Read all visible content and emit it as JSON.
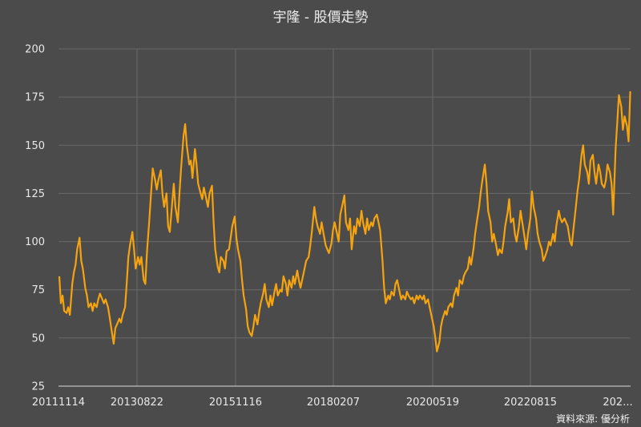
{
  "chart_data": {
    "type": "line",
    "title": "宇隆 - 股價走勢",
    "source": "資料來源: 優分析",
    "y_ticks": [
      25,
      50,
      75,
      100,
      125,
      150,
      175,
      200
    ],
    "ylim": [
      25,
      200
    ],
    "x_ticks": [
      "20111114",
      "20130822",
      "20151116",
      "20180207",
      "20200519",
      "20220815",
      "202..."
    ],
    "grid": "vertical-and-horizontal",
    "line_color": "#f5a30f",
    "series": [
      {
        "x_index_range": [
          0,
          100
        ],
        "values": [
          [
            0.0,
            82
          ],
          [
            0.2,
            68
          ],
          [
            0.4,
            72
          ],
          [
            0.6,
            64
          ],
          [
            0.9,
            63
          ],
          [
            1.1,
            66
          ],
          [
            1.3,
            62
          ],
          [
            1.6,
            78
          ],
          [
            1.8,
            84
          ],
          [
            2.0,
            88
          ],
          [
            2.2,
            96
          ],
          [
            2.5,
            102
          ],
          [
            2.7,
            90
          ],
          [
            2.9,
            86
          ],
          [
            3.2,
            76
          ],
          [
            3.4,
            72
          ],
          [
            3.6,
            66
          ],
          [
            3.9,
            68
          ],
          [
            4.1,
            64
          ],
          [
            4.3,
            68
          ],
          [
            4.6,
            66
          ],
          [
            4.8,
            70
          ],
          [
            5.0,
            73
          ],
          [
            5.3,
            70
          ],
          [
            5.5,
            68
          ],
          [
            5.7,
            70
          ],
          [
            6.0,
            66
          ],
          [
            6.2,
            61
          ],
          [
            6.4,
            55
          ],
          [
            6.7,
            47
          ],
          [
            6.9,
            55
          ],
          [
            7.1,
            57
          ],
          [
            7.4,
            60
          ],
          [
            7.6,
            58
          ],
          [
            7.8,
            62
          ],
          [
            8.1,
            66
          ],
          [
            8.3,
            78
          ],
          [
            8.5,
            92
          ],
          [
            8.7,
            98
          ],
          [
            9.0,
            105
          ],
          [
            9.2,
            96
          ],
          [
            9.4,
            86
          ],
          [
            9.7,
            92
          ],
          [
            9.9,
            88
          ],
          [
            10.1,
            92
          ],
          [
            10.4,
            80
          ],
          [
            10.6,
            78
          ],
          [
            10.8,
            95
          ],
          [
            11.1,
            112
          ],
          [
            11.3,
            125
          ],
          [
            11.5,
            138
          ],
          [
            11.8,
            132
          ],
          [
            12.0,
            127
          ],
          [
            12.2,
            132
          ],
          [
            12.5,
            137
          ],
          [
            12.7,
            125
          ],
          [
            12.9,
            118
          ],
          [
            13.2,
            125
          ],
          [
            13.4,
            108
          ],
          [
            13.6,
            105
          ],
          [
            13.9,
            120
          ],
          [
            14.1,
            130
          ],
          [
            14.3,
            118
          ],
          [
            14.6,
            110
          ],
          [
            14.8,
            125
          ],
          [
            15.0,
            138
          ],
          [
            15.3,
            155
          ],
          [
            15.5,
            161
          ],
          [
            15.7,
            150
          ],
          [
            16.0,
            140
          ],
          [
            16.2,
            142
          ],
          [
            16.4,
            133
          ],
          [
            16.7,
            148
          ],
          [
            16.9,
            140
          ],
          [
            17.1,
            130
          ],
          [
            17.4,
            125
          ],
          [
            17.6,
            122
          ],
          [
            17.8,
            128
          ],
          [
            18.1,
            122
          ],
          [
            18.3,
            118
          ],
          [
            18.5,
            125
          ],
          [
            18.8,
            129
          ],
          [
            19.0,
            110
          ],
          [
            19.2,
            96
          ],
          [
            19.5,
            87
          ],
          [
            19.7,
            84
          ],
          [
            19.9,
            92
          ],
          [
            20.2,
            90
          ],
          [
            20.4,
            86
          ],
          [
            20.6,
            95
          ],
          [
            20.9,
            96
          ],
          [
            21.1,
            102
          ],
          [
            21.3,
            108
          ],
          [
            21.6,
            113
          ],
          [
            21.8,
            102
          ],
          [
            22.0,
            96
          ],
          [
            22.3,
            90
          ],
          [
            22.5,
            80
          ],
          [
            22.7,
            72
          ],
          [
            23.0,
            65
          ],
          [
            23.2,
            56
          ],
          [
            23.4,
            53
          ],
          [
            23.7,
            51
          ],
          [
            23.9,
            56
          ],
          [
            24.1,
            62
          ],
          [
            24.4,
            57
          ],
          [
            24.6,
            63
          ],
          [
            24.8,
            68
          ],
          [
            25.1,
            73
          ],
          [
            25.3,
            78
          ],
          [
            25.5,
            70
          ],
          [
            25.8,
            66
          ],
          [
            26.0,
            72
          ],
          [
            26.2,
            67
          ],
          [
            26.5,
            74
          ],
          [
            26.7,
            78
          ],
          [
            26.9,
            72
          ],
          [
            27.2,
            75
          ],
          [
            27.4,
            74
          ],
          [
            27.6,
            82
          ],
          [
            27.9,
            78
          ],
          [
            28.1,
            72
          ],
          [
            28.3,
            80
          ],
          [
            28.6,
            76
          ],
          [
            28.8,
            82
          ],
          [
            29.0,
            78
          ],
          [
            29.3,
            85
          ],
          [
            29.5,
            80
          ],
          [
            29.7,
            76
          ],
          [
            30.0,
            82
          ],
          [
            30.2,
            86
          ],
          [
            30.4,
            90
          ],
          [
            30.7,
            92
          ],
          [
            30.9,
            98
          ],
          [
            31.1,
            105
          ],
          [
            31.4,
            118
          ],
          [
            31.6,
            112
          ],
          [
            31.8,
            108
          ],
          [
            32.1,
            104
          ],
          [
            32.3,
            110
          ],
          [
            32.5,
            105
          ],
          [
            32.8,
            98
          ],
          [
            33.0,
            96
          ],
          [
            33.2,
            94
          ],
          [
            33.5,
            99
          ],
          [
            33.7,
            106
          ],
          [
            33.9,
            110
          ],
          [
            34.2,
            104
          ],
          [
            34.4,
            100
          ],
          [
            34.6,
            114
          ],
          [
            34.9,
            120
          ],
          [
            35.1,
            124
          ],
          [
            35.3,
            110
          ],
          [
            35.6,
            106
          ],
          [
            35.8,
            112
          ],
          [
            36.0,
            96
          ],
          [
            36.3,
            108
          ],
          [
            36.5,
            104
          ],
          [
            36.7,
            112
          ],
          [
            37.0,
            108
          ],
          [
            37.2,
            116
          ],
          [
            37.4,
            110
          ],
          [
            37.7,
            104
          ],
          [
            37.9,
            112
          ],
          [
            38.1,
            106
          ],
          [
            38.4,
            110
          ],
          [
            38.6,
            108
          ],
          [
            38.8,
            112
          ],
          [
            39.1,
            114
          ],
          [
            39.3,
            110
          ],
          [
            39.5,
            106
          ],
          [
            39.8,
            90
          ],
          [
            40.0,
            76
          ],
          [
            40.2,
            68
          ],
          [
            40.5,
            72
          ],
          [
            40.7,
            70
          ],
          [
            40.9,
            74
          ],
          [
            41.2,
            72
          ],
          [
            41.4,
            78
          ],
          [
            41.6,
            80
          ],
          [
            41.9,
            74
          ],
          [
            42.1,
            70
          ],
          [
            42.3,
            72
          ],
          [
            42.6,
            70
          ],
          [
            42.8,
            74
          ],
          [
            43.0,
            72
          ],
          [
            43.3,
            70
          ],
          [
            43.5,
            71
          ],
          [
            43.7,
            68
          ],
          [
            44.0,
            72
          ],
          [
            44.2,
            70
          ],
          [
            44.4,
            72
          ],
          [
            44.7,
            70
          ],
          [
            44.9,
            72
          ],
          [
            45.1,
            68
          ],
          [
            45.4,
            70
          ],
          [
            45.6,
            66
          ],
          [
            45.8,
            62
          ],
          [
            46.1,
            56
          ],
          [
            46.3,
            50
          ],
          [
            46.5,
            43
          ],
          [
            46.8,
            48
          ],
          [
            47.0,
            56
          ],
          [
            47.2,
            60
          ],
          [
            47.5,
            64
          ],
          [
            47.7,
            62
          ],
          [
            47.9,
            66
          ],
          [
            48.2,
            68
          ],
          [
            48.4,
            66
          ],
          [
            48.6,
            72
          ],
          [
            48.9,
            76
          ],
          [
            49.1,
            72
          ],
          [
            49.3,
            80
          ],
          [
            49.6,
            78
          ],
          [
            49.8,
            82
          ],
          [
            50.0,
            84
          ],
          [
            50.3,
            86
          ],
          [
            50.5,
            92
          ],
          [
            50.7,
            88
          ],
          [
            51.0,
            96
          ],
          [
            51.2,
            104
          ],
          [
            51.4,
            110
          ],
          [
            51.7,
            118
          ],
          [
            51.9,
            126
          ],
          [
            52.1,
            132
          ],
          [
            52.4,
            140
          ],
          [
            52.6,
            130
          ],
          [
            52.8,
            116
          ],
          [
            53.1,
            110
          ],
          [
            53.3,
            100
          ],
          [
            53.5,
            104
          ],
          [
            53.8,
            98
          ],
          [
            54.0,
            93
          ],
          [
            54.2,
            96
          ],
          [
            54.5,
            94
          ],
          [
            54.7,
            100
          ],
          [
            54.9,
            108
          ],
          [
            55.2,
            115
          ],
          [
            55.4,
            122
          ],
          [
            55.6,
            110
          ],
          [
            55.9,
            112
          ],
          [
            56.1,
            104
          ],
          [
            56.3,
            100
          ],
          [
            56.6,
            108
          ],
          [
            56.8,
            116
          ],
          [
            57.0,
            110
          ],
          [
            57.3,
            102
          ],
          [
            57.5,
            96
          ],
          [
            57.7,
            104
          ],
          [
            58.0,
            112
          ],
          [
            58.2,
            126
          ],
          [
            58.4,
            118
          ],
          [
            58.7,
            112
          ],
          [
            58.9,
            104
          ],
          [
            59.1,
            100
          ],
          [
            59.4,
            96
          ],
          [
            59.6,
            90
          ],
          [
            59.8,
            92
          ],
          [
            60.1,
            96
          ],
          [
            60.3,
            100
          ],
          [
            60.5,
            98
          ],
          [
            60.8,
            104
          ],
          [
            61.0,
            100
          ],
          [
            61.2,
            108
          ],
          [
            61.5,
            116
          ],
          [
            61.7,
            112
          ],
          [
            61.9,
            110
          ],
          [
            62.2,
            112
          ],
          [
            62.4,
            110
          ],
          [
            62.6,
            108
          ],
          [
            62.9,
            100
          ],
          [
            63.1,
            98
          ],
          [
            63.3,
            106
          ],
          [
            63.6,
            118
          ],
          [
            63.8,
            126
          ],
          [
            64.0,
            132
          ],
          [
            64.3,
            145
          ],
          [
            64.5,
            150
          ],
          [
            64.7,
            140
          ],
          [
            65.0,
            136
          ],
          [
            65.2,
            130
          ],
          [
            65.4,
            142
          ],
          [
            65.7,
            145
          ],
          [
            65.9,
            136
          ],
          [
            66.1,
            130
          ],
          [
            66.4,
            140
          ],
          [
            66.6,
            136
          ],
          [
            66.8,
            130
          ],
          [
            67.1,
            128
          ],
          [
            67.3,
            132
          ],
          [
            67.5,
            140
          ],
          [
            67.8,
            136
          ],
          [
            68.0,
            130
          ],
          [
            68.2,
            114
          ],
          [
            68.5,
            148
          ],
          [
            68.7,
            162
          ],
          [
            68.9,
            176
          ],
          [
            69.2,
            170
          ],
          [
            69.4,
            158
          ],
          [
            69.6,
            165
          ],
          [
            69.9,
            160
          ],
          [
            70.1,
            152
          ],
          [
            70.3,
            178
          ]
        ]
      }
    ]
  }
}
